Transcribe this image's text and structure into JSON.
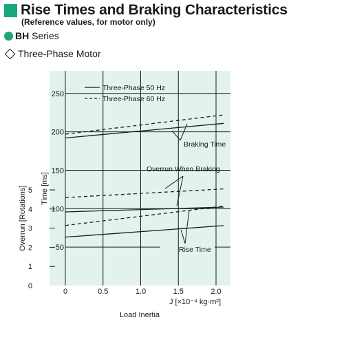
{
  "header": {
    "title": "Rise Times and Braking Characteristics",
    "subtitle": "(Reference values, for motor only)",
    "series_bold": "BH",
    "series_rest": " Series",
    "motor": "Three-Phase Motor"
  },
  "colors": {
    "accent": "#1aa67f",
    "plot_bg": "#e3f3ec"
  },
  "chart_data": {
    "type": "line",
    "x": [
      0,
      2.1
    ],
    "xlabel": "Load Inertia",
    "xunit_text": "J  [×10⁻⁴ kg·m²]",
    "x_ticks": [
      "0",
      "0.5",
      "1.0",
      "1.5",
      "2.0"
    ],
    "xlim": [
      0,
      2.2
    ],
    "ylabel_time": "Time [ms]",
    "ylim_time": [
      0,
      275
    ],
    "y_ticks_time": [
      "50",
      "100",
      "150",
      "200",
      "250"
    ],
    "ylabel_overrun": "Overrun [Rotations]",
    "ylim_overrun": [
      0,
      5.5
    ],
    "y_ticks_overrun": [
      "0",
      "1",
      "2",
      "3",
      "4",
      "5"
    ],
    "legend": {
      "position": "top-center",
      "solid_label": "Three-Phase 50 Hz",
      "dashed_label": "Three-Phase 60 Hz"
    },
    "annotations": {
      "braking": "Braking Time",
      "overrun": "Overrun When Braking",
      "rise": "Rise Time"
    },
    "series": [
      {
        "name": "Three-Phase 50 Hz",
        "quantity": "Braking Time",
        "axis": "time",
        "style": "solid",
        "values": [
          192,
          211
        ]
      },
      {
        "name": "Three-Phase 60 Hz",
        "quantity": "Braking Time",
        "axis": "time",
        "style": "dashed",
        "values": [
          197,
          222
        ]
      },
      {
        "name": "Three-Phase 50 Hz",
        "quantity": "Overrun When Braking",
        "axis": "overrun",
        "style": "solid",
        "values": [
          3.85,
          4.1
        ]
      },
      {
        "name": "Three-Phase 60 Hz",
        "quantity": "Overrun When Braking",
        "axis": "overrun",
        "style": "dashed",
        "values": [
          4.6,
          5.05
        ]
      },
      {
        "name": "Three-Phase 60 Hz",
        "quantity": "Overrun When Braking",
        "axis": "overrun",
        "style": "dashed",
        "values": [
          3.14,
          4.15
        ]
      },
      {
        "name": "Three-Phase 50 Hz",
        "quantity": "Rise Time",
        "axis": "time",
        "style": "solid",
        "values": [
          63,
          78
        ]
      }
    ]
  }
}
